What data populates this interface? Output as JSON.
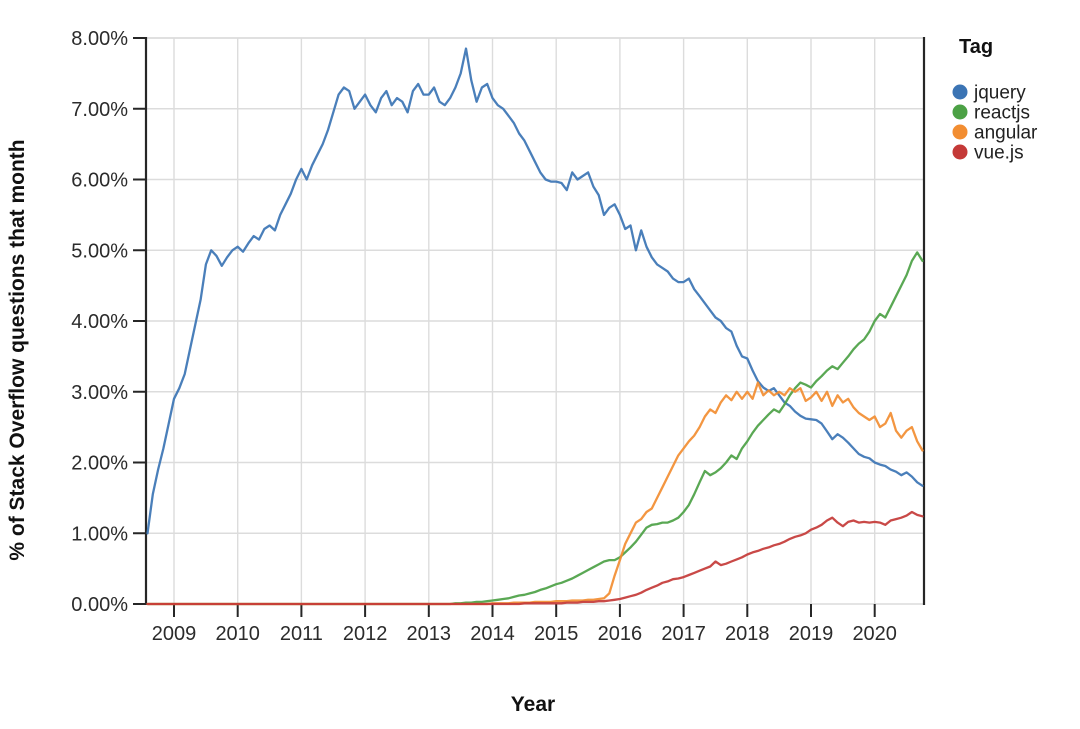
{
  "chart_data": {
    "type": "line",
    "title": "",
    "xlabel": "Year",
    "ylabel": "% of Stack Overflow questions that month",
    "interval": "monthly",
    "x_start": "2008-08",
    "x_end": "2020-10",
    "grid": true,
    "x_axis": {
      "tick_labels": [
        "2009",
        "2010",
        "2011",
        "2012",
        "2013",
        "2014",
        "2015",
        "2016",
        "2017",
        "2018",
        "2019",
        "2020"
      ]
    },
    "y_axis": {
      "ticks": [
        0,
        1,
        2,
        3,
        4,
        5,
        6,
        7,
        8
      ],
      "tick_labels": [
        "0.00%",
        "1.00%",
        "2.00%",
        "3.00%",
        "4.00%",
        "5.00%",
        "6.00%",
        "7.00%",
        "8.00%"
      ],
      "ylim": [
        0,
        8
      ]
    },
    "legend": {
      "title": "Tag",
      "position": "top-right"
    },
    "series": [
      {
        "name": "jquery",
        "color": "#3b74b4",
        "values": [
          1.0,
          1.55,
          1.9,
          2.2,
          2.55,
          2.9,
          3.05,
          3.25,
          3.6,
          3.95,
          4.3,
          4.8,
          5.0,
          4.92,
          4.78,
          4.9,
          5.0,
          5.05,
          4.98,
          5.1,
          5.2,
          5.15,
          5.3,
          5.35,
          5.28,
          5.5,
          5.65,
          5.8,
          6.0,
          6.15,
          6.0,
          6.2,
          6.35,
          6.5,
          6.7,
          6.95,
          7.2,
          7.3,
          7.25,
          7.0,
          7.1,
          7.2,
          7.05,
          6.95,
          7.15,
          7.25,
          7.05,
          7.15,
          7.1,
          6.95,
          7.25,
          7.35,
          7.2,
          7.2,
          7.3,
          7.1,
          7.05,
          7.15,
          7.3,
          7.5,
          7.85,
          7.4,
          7.1,
          7.3,
          7.35,
          7.15,
          7.05,
          7.0,
          6.9,
          6.8,
          6.65,
          6.55,
          6.4,
          6.25,
          6.1,
          6.0,
          5.97,
          5.97,
          5.95,
          5.85,
          6.1,
          6.0,
          6.05,
          6.1,
          5.9,
          5.78,
          5.5,
          5.6,
          5.65,
          5.5,
          5.3,
          5.35,
          5.0,
          5.28,
          5.05,
          4.9,
          4.8,
          4.75,
          4.7,
          4.6,
          4.55,
          4.55,
          4.6,
          4.45,
          4.35,
          4.25,
          4.15,
          4.05,
          4.0,
          3.9,
          3.85,
          3.65,
          3.5,
          3.47,
          3.3,
          3.15,
          3.06,
          3.01,
          3.05,
          2.95,
          2.85,
          2.8,
          2.72,
          2.66,
          2.62,
          2.61,
          2.6,
          2.55,
          2.44,
          2.33,
          2.4,
          2.35,
          2.28,
          2.2,
          2.12,
          2.08,
          2.06,
          2.0,
          1.97,
          1.95,
          1.9,
          1.87,
          1.82,
          1.86,
          1.8,
          1.72,
          1.67
        ]
      },
      {
        "name": "reactjs",
        "color": "#4ca145",
        "values": [
          0,
          0,
          0,
          0,
          0,
          0,
          0,
          0,
          0,
          0,
          0,
          0,
          0,
          0,
          0,
          0,
          0,
          0,
          0,
          0,
          0,
          0,
          0,
          0,
          0,
          0,
          0,
          0,
          0,
          0,
          0,
          0,
          0,
          0,
          0,
          0,
          0,
          0,
          0,
          0,
          0,
          0,
          0,
          0,
          0,
          0,
          0,
          0,
          0,
          0,
          0,
          0,
          0,
          0,
          0,
          0,
          0,
          0,
          0.01,
          0.01,
          0.02,
          0.02,
          0.03,
          0.03,
          0.04,
          0.05,
          0.06,
          0.07,
          0.08,
          0.1,
          0.12,
          0.13,
          0.15,
          0.17,
          0.2,
          0.22,
          0.25,
          0.28,
          0.3,
          0.33,
          0.36,
          0.4,
          0.44,
          0.48,
          0.52,
          0.56,
          0.6,
          0.62,
          0.62,
          0.66,
          0.73,
          0.8,
          0.88,
          0.98,
          1.08,
          1.12,
          1.13,
          1.15,
          1.15,
          1.18,
          1.22,
          1.3,
          1.4,
          1.55,
          1.72,
          1.88,
          1.82,
          1.86,
          1.92,
          2.0,
          2.1,
          2.05,
          2.2,
          2.3,
          2.42,
          2.52,
          2.6,
          2.68,
          2.75,
          2.71,
          2.82,
          2.95,
          3.05,
          3.13,
          3.1,
          3.06,
          3.15,
          3.22,
          3.3,
          3.36,
          3.32,
          3.41,
          3.5,
          3.6,
          3.68,
          3.74,
          3.85,
          4.0,
          4.1,
          4.05,
          4.2,
          4.35,
          4.5,
          4.65,
          4.85,
          4.97,
          4.85
        ]
      },
      {
        "name": "angular",
        "color": "#f28d31",
        "values": [
          0,
          0,
          0,
          0,
          0,
          0,
          0,
          0,
          0,
          0,
          0,
          0,
          0,
          0,
          0,
          0,
          0,
          0,
          0,
          0,
          0,
          0,
          0,
          0,
          0,
          0,
          0,
          0,
          0,
          0,
          0,
          0,
          0,
          0,
          0,
          0,
          0,
          0,
          0,
          0,
          0,
          0,
          0,
          0,
          0,
          0,
          0,
          0,
          0,
          0,
          0,
          0,
          0,
          0,
          0,
          0,
          0,
          0,
          0,
          0,
          0,
          0,
          0,
          0,
          0,
          0.01,
          0.01,
          0.01,
          0.01,
          0.02,
          0.02,
          0.02,
          0.02,
          0.03,
          0.03,
          0.03,
          0.03,
          0.04,
          0.04,
          0.04,
          0.05,
          0.05,
          0.05,
          0.06,
          0.06,
          0.07,
          0.08,
          0.15,
          0.4,
          0.62,
          0.85,
          1.0,
          1.15,
          1.2,
          1.3,
          1.35,
          1.5,
          1.65,
          1.8,
          1.95,
          2.1,
          2.2,
          2.3,
          2.38,
          2.5,
          2.65,
          2.75,
          2.7,
          2.85,
          2.95,
          2.88,
          3.0,
          2.9,
          3.0,
          2.9,
          3.13,
          2.95,
          3.02,
          2.95,
          3.0,
          2.95,
          3.05,
          3.0,
          3.05,
          2.87,
          2.92,
          3.0,
          2.87,
          3.0,
          2.8,
          2.95,
          2.85,
          2.9,
          2.78,
          2.7,
          2.65,
          2.6,
          2.65,
          2.5,
          2.55,
          2.7,
          2.45,
          2.35,
          2.45,
          2.5,
          2.3,
          2.17
        ]
      },
      {
        "name": "vue.js",
        "color": "#c43937",
        "values": [
          0,
          0,
          0,
          0,
          0,
          0,
          0,
          0,
          0,
          0,
          0,
          0,
          0,
          0,
          0,
          0,
          0,
          0,
          0,
          0,
          0,
          0,
          0,
          0,
          0,
          0,
          0,
          0,
          0,
          0,
          0,
          0,
          0,
          0,
          0,
          0,
          0,
          0,
          0,
          0,
          0,
          0,
          0,
          0,
          0,
          0,
          0,
          0,
          0,
          0,
          0,
          0,
          0,
          0,
          0,
          0,
          0,
          0,
          0,
          0,
          0,
          0,
          0,
          0,
          0,
          0,
          0,
          0,
          0,
          0,
          0,
          0.01,
          0.01,
          0.01,
          0.01,
          0.01,
          0.01,
          0.01,
          0.01,
          0.02,
          0.02,
          0.02,
          0.03,
          0.03,
          0.03,
          0.04,
          0.04,
          0.05,
          0.06,
          0.07,
          0.09,
          0.11,
          0.13,
          0.16,
          0.2,
          0.23,
          0.26,
          0.3,
          0.32,
          0.35,
          0.36,
          0.38,
          0.41,
          0.44,
          0.47,
          0.5,
          0.53,
          0.6,
          0.55,
          0.57,
          0.6,
          0.63,
          0.66,
          0.7,
          0.73,
          0.75,
          0.78,
          0.8,
          0.83,
          0.85,
          0.88,
          0.92,
          0.95,
          0.97,
          1.0,
          1.05,
          1.08,
          1.12,
          1.18,
          1.22,
          1.15,
          1.1,
          1.16,
          1.18,
          1.15,
          1.16,
          1.15,
          1.16,
          1.15,
          1.12,
          1.18,
          1.2,
          1.22,
          1.25,
          1.3,
          1.26,
          1.24
        ]
      }
    ],
    "colors": {
      "grid": "#dcdcdc",
      "axis": "#262626",
      "text": "#2b2b2b"
    }
  }
}
